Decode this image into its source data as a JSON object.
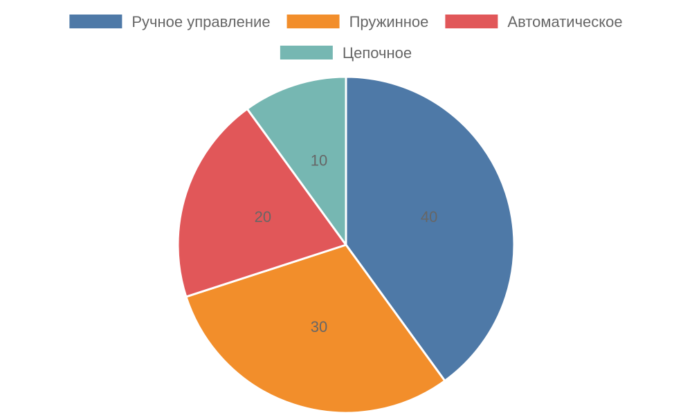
{
  "chart_data": {
    "type": "pie",
    "categories": [
      "Ручное управление",
      "Пружинное",
      "Автоматическое",
      "Цепочное"
    ],
    "values": [
      40,
      30,
      20,
      10
    ],
    "colors": [
      "#4e79a7",
      "#f28e2b",
      "#e15759",
      "#76b7b2"
    ],
    "legend_position": "top",
    "title": "",
    "data_labels": true
  }
}
